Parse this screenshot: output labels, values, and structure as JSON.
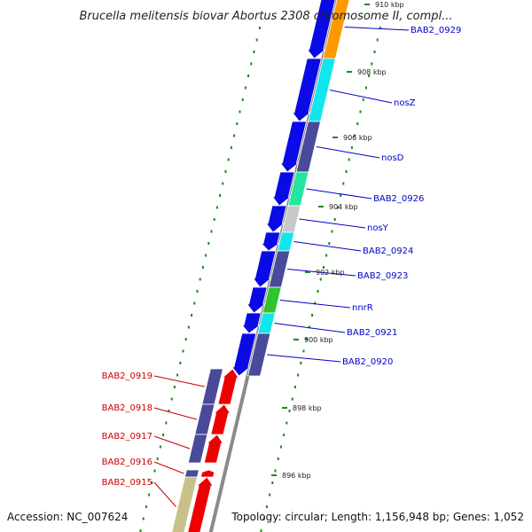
{
  "title": "Brucella melitensis biovar Abortus 2308 chromosome II, compl...",
  "footer": {
    "accession": "Accession: NC_007624",
    "summary": "Topology: circular; Length: 1,156,948 bp; Genes: 1,052"
  },
  "colors": {
    "forward_label": "#0000cc",
    "reverse_label": "#cc0000",
    "backbone": "#8a8a8a",
    "tick": "#1a8a1a",
    "blue": "#0a0ae6",
    "red": "#ee0000",
    "navy": "#4a4a9a",
    "cyan": "#11e6ee",
    "green": "#2ec42e",
    "mint": "#22e6a0",
    "grey": "#c8c8c8",
    "orange": "#ff9900",
    "khaki": "#c8c08a"
  },
  "kbp_labels": [
    "910 kbp",
    "908 kbp",
    "906 kbp",
    "904 kbp",
    "902 kbp",
    "900 kbp",
    "898 kbp",
    "896 kbp"
  ],
  "forward_genes": [
    {
      "label": "BAB2_0929",
      "color": "orange"
    },
    {
      "label": "nosZ",
      "color": "cyan"
    },
    {
      "label": "nosD",
      "color": "navy"
    },
    {
      "label": "BAB2_0926",
      "color": "mint"
    },
    {
      "label": "nosY",
      "color": "grey"
    },
    {
      "label": "BAB2_0924",
      "color": "cyan"
    },
    {
      "label": "BAB2_0923",
      "color": "navy"
    },
    {
      "label": "nnrR",
      "color": "green"
    },
    {
      "label": "BAB2_0921",
      "color": "cyan"
    },
    {
      "label": "BAB2_0920",
      "color": "navy"
    }
  ],
  "reverse_genes": [
    {
      "label": "BAB2_0919",
      "color": "navy"
    },
    {
      "label": "BAB2_0918",
      "color": "navy"
    },
    {
      "label": "BAB2_0917",
      "color": "navy"
    },
    {
      "label": "BAB2_0916",
      "color": "navy"
    },
    {
      "label": "BAB2_0915",
      "color": "khaki"
    }
  ]
}
